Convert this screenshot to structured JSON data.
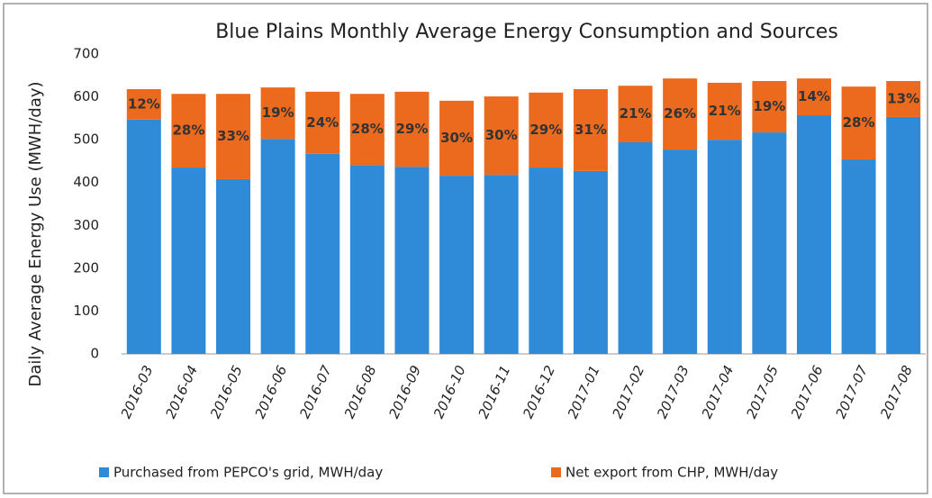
{
  "chart_data": {
    "type": "stacked-bar",
    "title": "Blue Plains Monthly Average Energy Consumption and Sources",
    "y_label": "Daily Average Energy Use (MWH/day)",
    "categories": [
      "2016-03",
      "2016-04",
      "2016-05",
      "2016-06",
      "2016-07",
      "2016-08",
      "2016-09",
      "2016-10",
      "2016-11",
      "2016-12",
      "2017-01",
      "2017-02",
      "2017-03",
      "2017-04",
      "2017-05",
      "2017-06",
      "2017-07",
      "2017-08"
    ],
    "series": [
      {
        "name": "Purchased from PEPCO's grid, MWH/day",
        "color": "#2f8bd8",
        "values": [
          547,
          435,
          408,
          502,
          467,
          441,
          437,
          416,
          418,
          435,
          427,
          494,
          477,
          500,
          517,
          557,
          454,
          553
        ]
      },
      {
        "name": "Net export from CHP, MWH/day",
        "color": "#ec6a1e",
        "values": [
          71,
          172,
          199,
          120,
          145,
          166,
          175,
          175,
          183,
          175,
          191,
          132,
          166,
          133,
          120,
          86,
          170,
          84
        ]
      }
    ],
    "annotations": [
      "12%",
      "28%",
      "33%",
      "19%",
      "24%",
      "28%",
      "29%",
      "30%",
      "30%",
      "29%",
      "31%",
      "21%",
      "26%",
      "21%",
      "19%",
      "14%",
      "28%",
      "13%"
    ],
    "ylim": [
      0,
      700
    ],
    "yticks": [
      0,
      100,
      200,
      300,
      400,
      500,
      600,
      700
    ],
    "legend": "bottom"
  }
}
